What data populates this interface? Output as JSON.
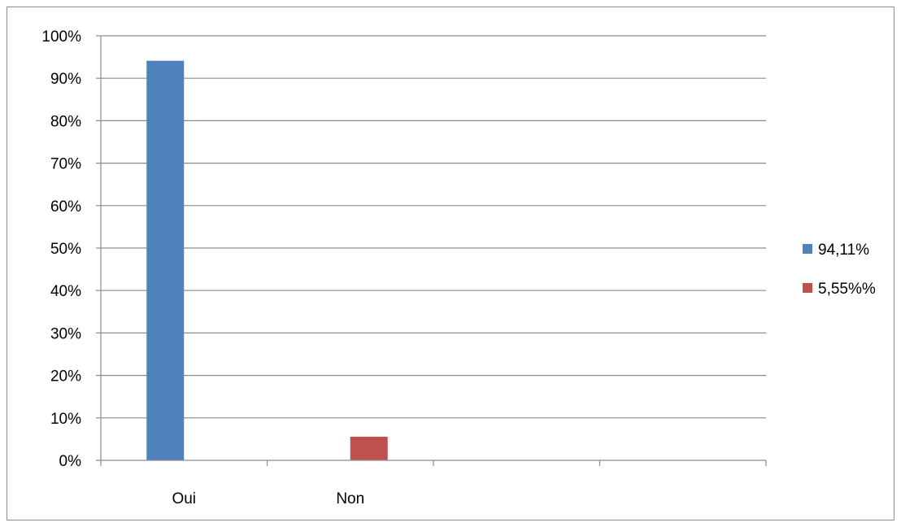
{
  "chart_data": {
    "type": "bar",
    "categories": [
      "Oui",
      "Non",
      "",
      ""
    ],
    "series": [
      {
        "name": "94,11%",
        "color": "#4f81bd",
        "values": [
          94.11,
          null,
          null,
          null
        ]
      },
      {
        "name": "5,55%%",
        "color": "#c0504d",
        "values": [
          null,
          5.55,
          null,
          null
        ]
      }
    ],
    "ylim": [
      0,
      100
    ],
    "yticks": [
      "0%",
      "10%",
      "20%",
      "30%",
      "40%",
      "50%",
      "60%",
      "70%",
      "80%",
      "90%",
      "100%"
    ],
    "grid": true,
    "legend_position": "right",
    "title": "",
    "xlabel": "",
    "ylabel": ""
  }
}
